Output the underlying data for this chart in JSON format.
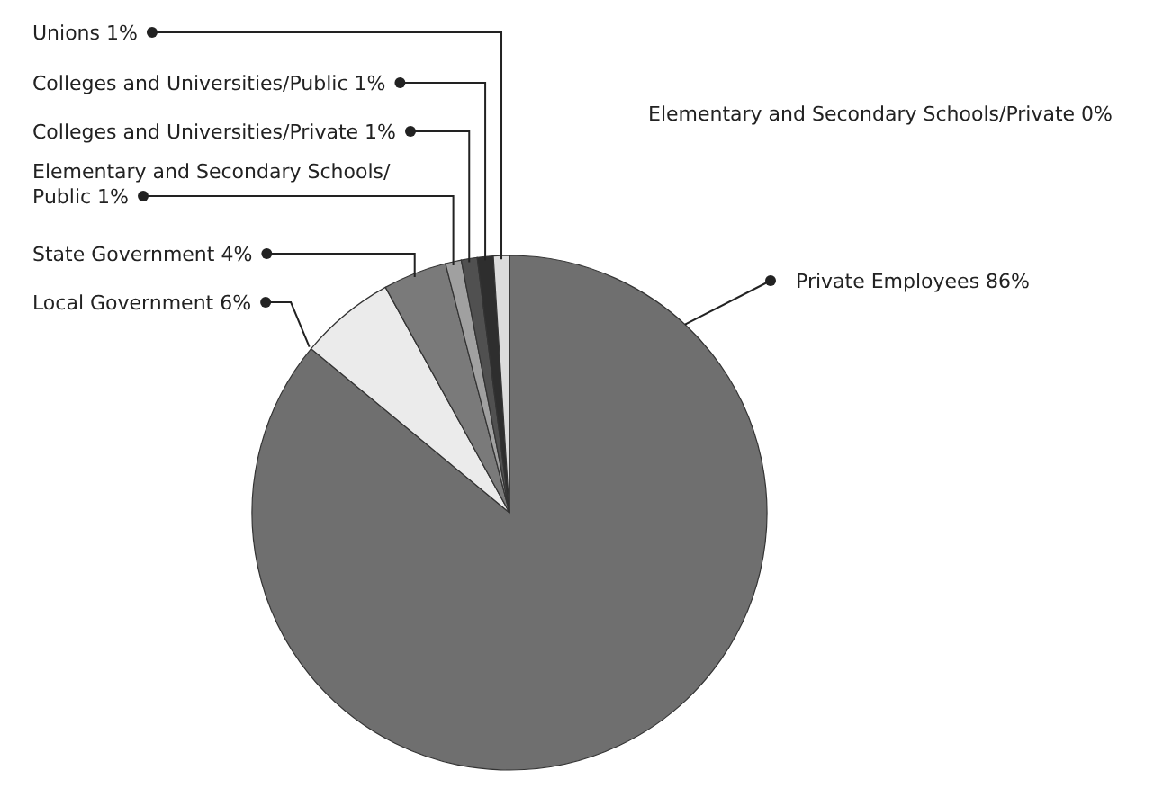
{
  "chart_data": {
    "type": "pie",
    "categories": [
      "Private Employees",
      "Elementary and Secondary Schools/Private",
      "Local Government",
      "State Government",
      "Elementary and Secondary Schools/Public",
      "Colleges and Universities/Private",
      "Colleges and Universities/Public",
      "Unions"
    ],
    "values": [
      86,
      0,
      6,
      4,
      1,
      1,
      1,
      1
    ],
    "value_labels": [
      "86%",
      "0%",
      "6%",
      "4%",
      "1%",
      "1%",
      "1%",
      "1%"
    ],
    "colors": [
      "#6f6f6f",
      null,
      "#ebebeb",
      "#7a7a7a",
      "#a0a0a0",
      "#505050",
      "#2e2e2e",
      "#dcdcdc"
    ]
  }
}
